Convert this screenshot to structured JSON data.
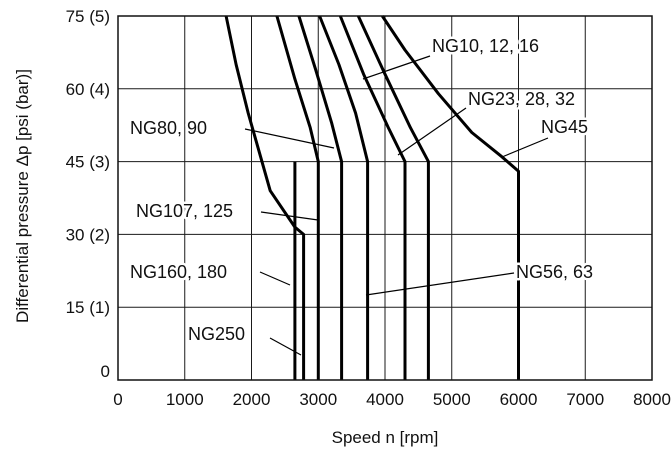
{
  "chart_data": {
    "type": "line",
    "xlabel": "Speed n [rpm]",
    "ylabel": "Differential pressure Δp [psi (bar)]",
    "xlim": [
      0,
      8000
    ],
    "ylim": [
      0,
      75
    ],
    "grid": true,
    "x_ticks": [
      "0",
      "1000",
      "2000",
      "3000",
      "4000",
      "5000",
      "6000",
      "7000",
      "8000"
    ],
    "y_ticks": [
      {
        "value": 0,
        "label": "0"
      },
      {
        "value": 15,
        "label": "15 (1)"
      },
      {
        "value": 30,
        "label": "30 (2)"
      },
      {
        "value": 45,
        "label": "45 (3)"
      },
      {
        "value": 60,
        "label": "60 (4)"
      },
      {
        "value": 75,
        "label": "75 (5)"
      }
    ],
    "series": [
      {
        "points": [
          [
            2650,
            0
          ],
          [
            2650,
            45
          ]
        ]
      },
      {
        "points": [
          [
            2780,
            0
          ],
          [
            2780,
            30
          ],
          [
            2650,
            31.5
          ],
          [
            2280,
            39
          ],
          [
            1950,
            55
          ],
          [
            1770,
            65
          ],
          [
            1620,
            75
          ]
        ]
      },
      {
        "points": [
          [
            3000,
            0
          ],
          [
            3000,
            45
          ],
          [
            2880,
            52
          ],
          [
            2650,
            62
          ],
          [
            2380,
            75
          ]
        ]
      },
      {
        "points": [
          [
            3350,
            0
          ],
          [
            3350,
            45
          ],
          [
            3200,
            53
          ],
          [
            2960,
            64
          ],
          [
            2710,
            75
          ]
        ]
      },
      {
        "points": [
          [
            3740,
            0
          ],
          [
            3740,
            45
          ],
          [
            3560,
            55
          ],
          [
            3310,
            65
          ],
          [
            3020,
            75
          ]
        ]
      },
      {
        "points": [
          [
            4300,
            0
          ],
          [
            4300,
            45
          ],
          [
            4050,
            52
          ],
          [
            3680,
            63
          ],
          [
            3330,
            75
          ]
        ]
      },
      {
        "points": [
          [
            4650,
            0
          ],
          [
            4650,
            45
          ],
          [
            4380,
            52
          ],
          [
            4000,
            63
          ],
          [
            3600,
            75
          ]
        ]
      },
      {
        "points": [
          [
            6000,
            0
          ],
          [
            6000,
            43
          ],
          [
            5750,
            46
          ],
          [
            5300,
            51
          ],
          [
            4800,
            59
          ],
          [
            4300,
            68
          ],
          [
            3960,
            75
          ]
        ]
      }
    ],
    "annotations": [
      {
        "text": "NG10, 12, 16"
      },
      {
        "text": "NG23, 28, 32"
      },
      {
        "text": "NG45"
      },
      {
        "text": "NG80, 90"
      },
      {
        "text": "NG107, 125"
      },
      {
        "text": "NG160, 180"
      },
      {
        "text": "NG56, 63"
      },
      {
        "text": "NG250"
      }
    ]
  }
}
